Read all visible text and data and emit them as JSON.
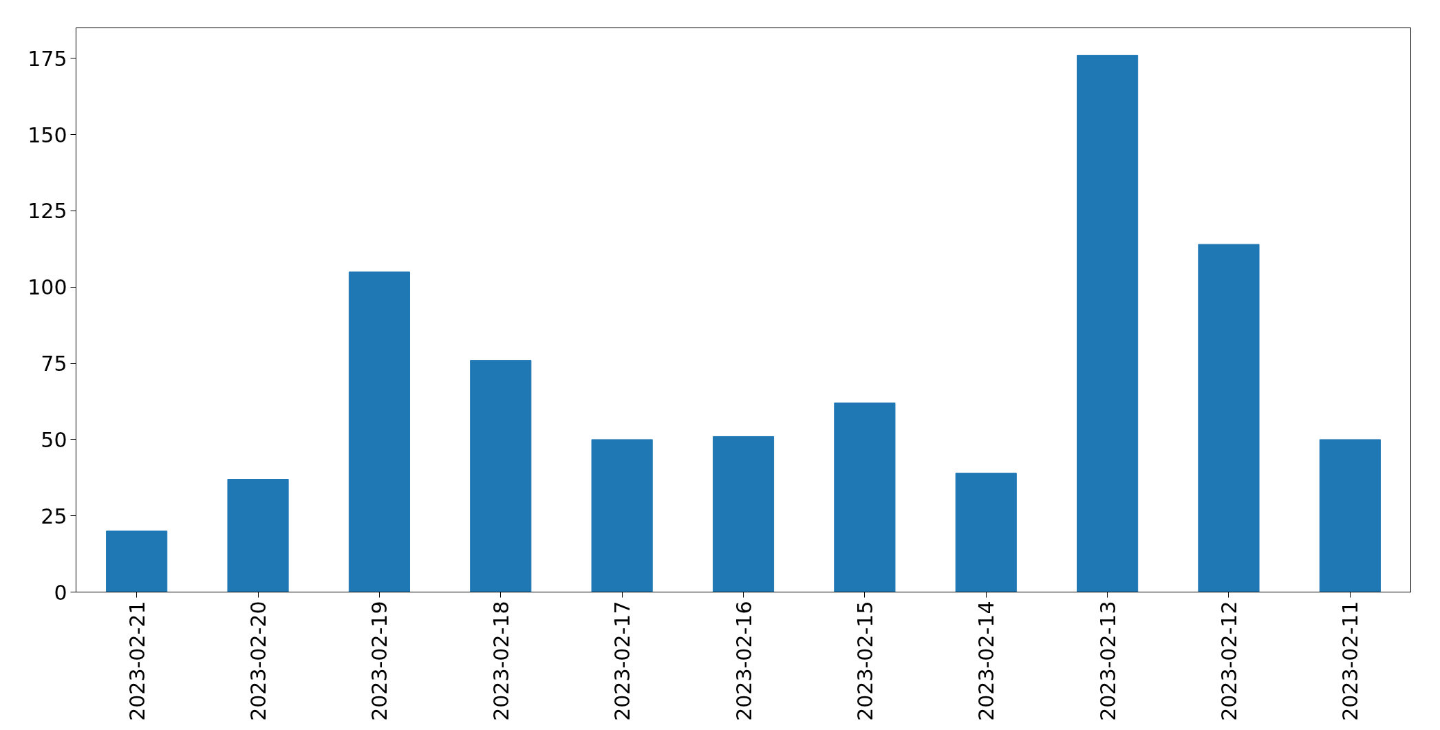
{
  "chart_data": {
    "type": "bar",
    "categories": [
      "2023-02-21",
      "2023-02-20",
      "2023-02-19",
      "2023-02-18",
      "2023-02-17",
      "2023-02-16",
      "2023-02-15",
      "2023-02-14",
      "2023-02-13",
      "2023-02-12",
      "2023-02-11"
    ],
    "values": [
      20,
      37,
      105,
      76,
      50,
      51,
      62,
      39,
      176,
      114,
      50
    ],
    "color": "#1f77b4",
    "ylim": [
      0,
      185
    ],
    "yticks": [
      0,
      25,
      50,
      75,
      100,
      125,
      150,
      175
    ],
    "grid": false
  }
}
